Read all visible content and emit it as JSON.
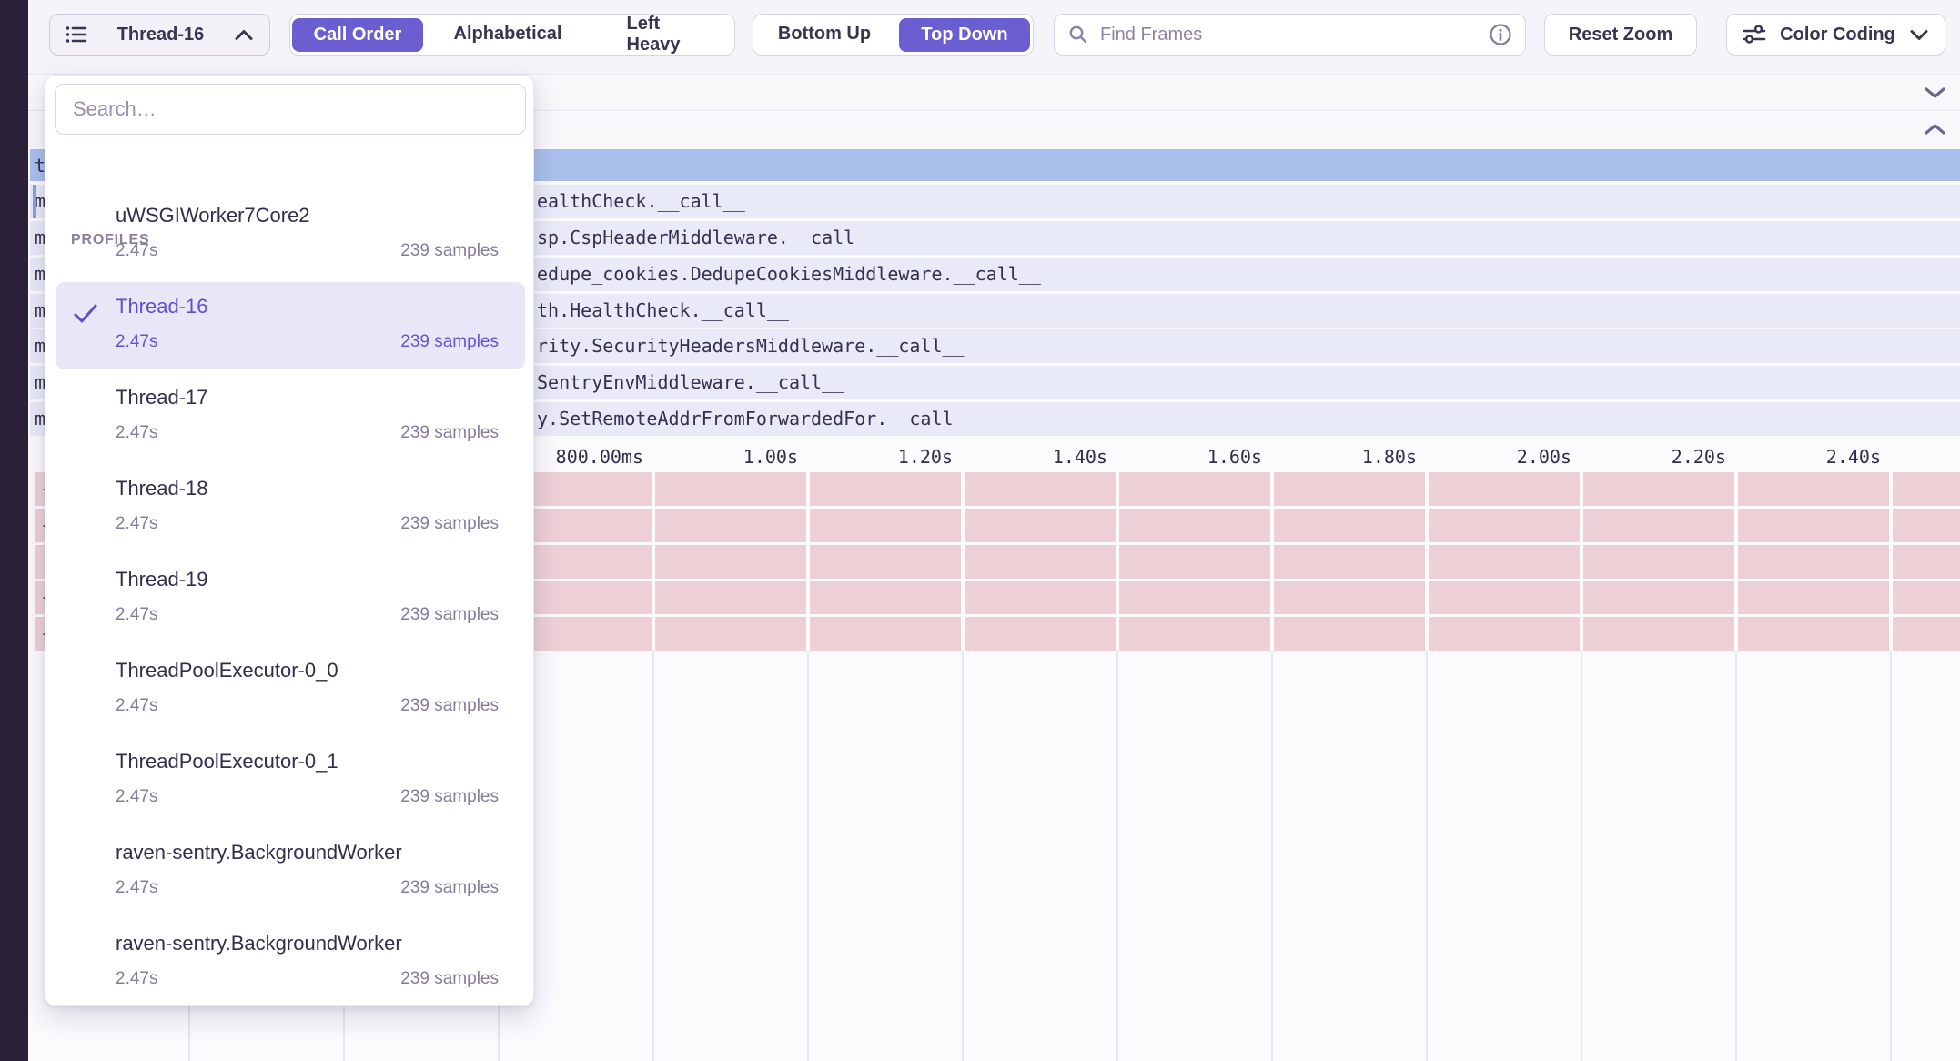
{
  "toolbar": {
    "thread_selector": {
      "label": "Thread-16"
    },
    "sort_options": [
      "Call Order",
      "Alphabetical",
      "Left Heavy"
    ],
    "sort_selected": "Call Order",
    "direction_options": [
      "Bottom Up",
      "Top Down"
    ],
    "direction_selected": "Top Down",
    "find_frames_placeholder": "Find Frames",
    "reset_zoom_label": "Reset Zoom",
    "color_coding_label": "Color Coding"
  },
  "profiles_dropdown": {
    "search_placeholder": "Search…",
    "section_label": "PROFILES",
    "items": [
      {
        "name": "uWSGIWorker7Core2",
        "duration": "2.47s",
        "samples": "239 samples",
        "selected": false
      },
      {
        "name": "Thread-16",
        "duration": "2.47s",
        "samples": "239 samples",
        "selected": true
      },
      {
        "name": "Thread-17",
        "duration": "2.47s",
        "samples": "239 samples",
        "selected": false
      },
      {
        "name": "Thread-18",
        "duration": "2.47s",
        "samples": "239 samples",
        "selected": false
      },
      {
        "name": "Thread-19",
        "duration": "2.47s",
        "samples": "239 samples",
        "selected": false
      },
      {
        "name": "ThreadPoolExecutor-0_0",
        "duration": "2.47s",
        "samples": "239 samples",
        "selected": false
      },
      {
        "name": "ThreadPoolExecutor-0_1",
        "duration": "2.47s",
        "samples": "239 samples",
        "selected": false
      },
      {
        "name": "raven-sentry.BackgroundWorker",
        "duration": "2.47s",
        "samples": "239 samples",
        "selected": false
      },
      {
        "name": "raven-sentry.BackgroundWorker",
        "duration": "2.47s",
        "samples": "239 samples",
        "selected": false
      }
    ]
  },
  "flamegraph": {
    "selected_row_prefix": "t",
    "frame_rows": [
      {
        "prefix": "m",
        "visible_text": "ealthCheck.__call__"
      },
      {
        "prefix": "m",
        "visible_text": "sp.CspHeaderMiddleware.__call__"
      },
      {
        "prefix": "m",
        "visible_text": "edupe_cookies.DedupeCookiesMiddleware.__call__"
      },
      {
        "prefix": "m",
        "visible_text": "th.HealthCheck.__call__"
      },
      {
        "prefix": "m",
        "visible_text": "rity.SecurityHeadersMiddleware.__call__"
      },
      {
        "prefix": "m",
        "visible_text": "SentryEnvMiddleware.__call__"
      },
      {
        "prefix": "m",
        "visible_text": "y.SetRemoteAddrFromForwardedFor.__call__"
      }
    ],
    "pink_row_fragments": [
      "-",
      "-",
      "|",
      "-",
      "-"
    ],
    "time_ticks": [
      "800.00ms",
      "1.00s",
      "1.20s",
      "1.40s",
      "1.60s",
      "1.80s",
      "2.00s",
      "2.20s",
      "2.40s"
    ]
  },
  "colors": {
    "accent_purple": "#6a5ed1",
    "selected_row_blue": "#a9c0ed",
    "frame_row_lavender": "#e8eaf8",
    "frame_row_pink": "#edd0d6",
    "sidebar_dark": "#2b2239"
  }
}
